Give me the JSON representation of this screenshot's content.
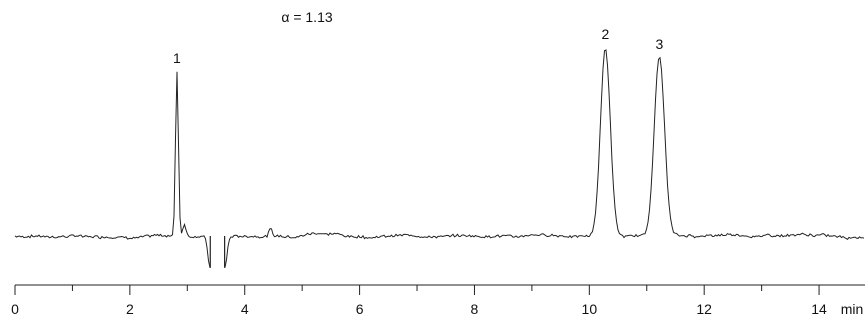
{
  "chart_data": {
    "type": "line",
    "title": "",
    "annotation": "α = 1.13",
    "xlabel": "min",
    "ylabel": "",
    "xlim": [
      0,
      14.8
    ],
    "ylim": [
      -0.2,
      1.1
    ],
    "x_ticks_major": [
      0,
      2,
      4,
      6,
      8,
      10,
      12,
      14
    ],
    "x_ticks_minor": [
      1,
      3,
      5,
      7,
      9,
      11,
      13
    ],
    "grid": false,
    "baseline_noise": 0.012,
    "dips": [
      {
        "start": 3.4,
        "end": 3.65,
        "depth": -0.16
      }
    ],
    "peaks": [
      {
        "label": "1",
        "time": 2.82,
        "height": 0.83,
        "width": 0.025
      },
      {
        "label": "2",
        "time": 10.28,
        "height": 0.95,
        "width": 0.085
      },
      {
        "label": "3",
        "time": 11.22,
        "height": 0.9,
        "width": 0.09
      }
    ],
    "minor_peaks": [
      {
        "time": 2.95,
        "height": 0.06,
        "width": 0.03
      },
      {
        "time": 4.45,
        "height": 0.035,
        "width": 0.03
      },
      {
        "time": 5.3,
        "height": 0.02,
        "width": 0.25
      }
    ]
  }
}
